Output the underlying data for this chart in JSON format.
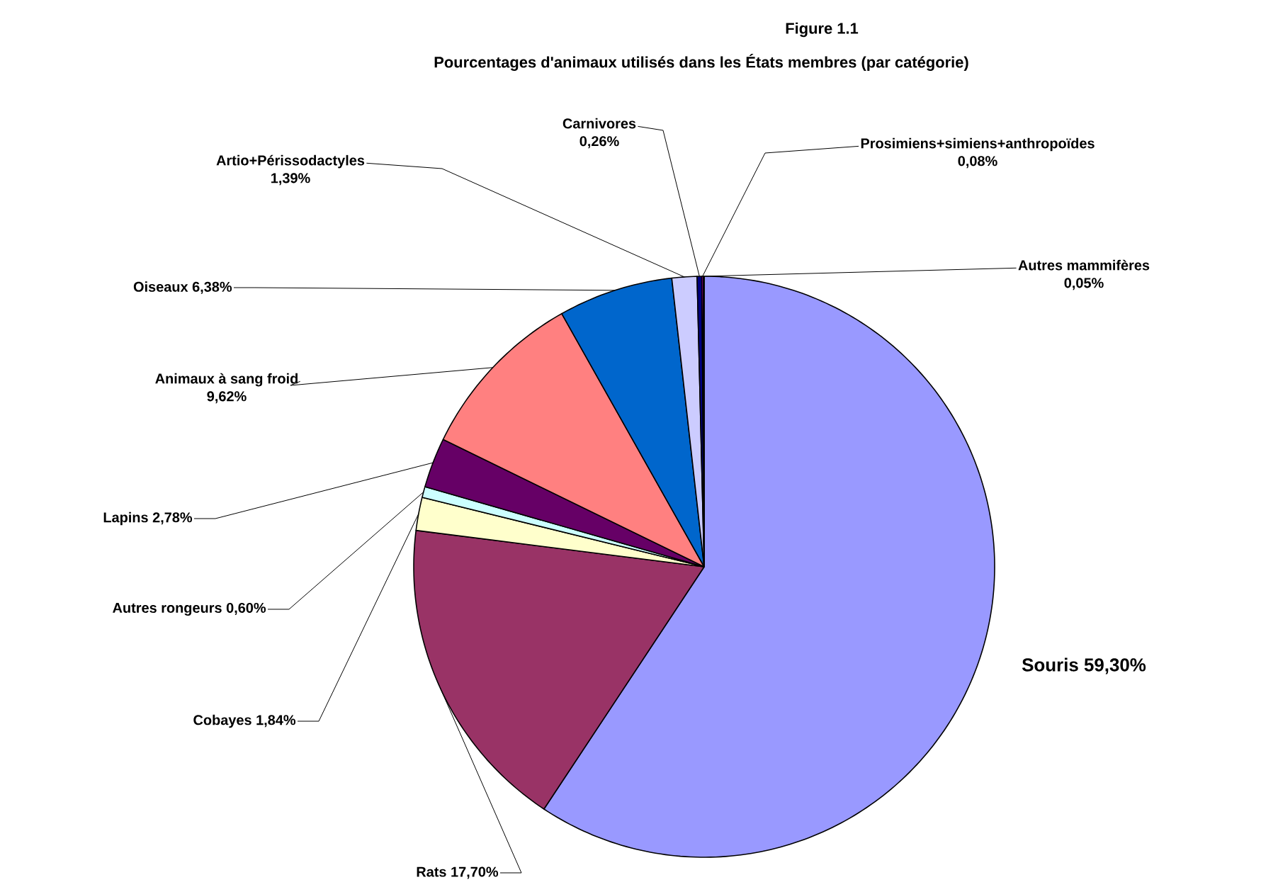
{
  "chart_data": {
    "type": "pie",
    "title": "Figure 1.1",
    "subtitle": "Pourcentages d'animaux utilisés dans les États membres (par catégorie)",
    "categories": [
      "Souris",
      "Rats",
      "Cobayes",
      "Autres rongeurs",
      "Lapins",
      "Animaux à sang froid",
      "Oiseaux",
      "Artio+Périssodactyles",
      "Carnivores",
      "Prosimiens+simiens+anthropoïdes",
      "Autres mammifères"
    ],
    "values": [
      59.3,
      17.7,
      1.84,
      0.6,
      2.78,
      9.62,
      6.38,
      1.39,
      0.26,
      0.08,
      0.05
    ],
    "value_labels": [
      "59,30%",
      "17,70%",
      "1,84%",
      "0,60%",
      "2,78%",
      "9,62%",
      "6,38%",
      "1,39%",
      "0,26%",
      "0,08%",
      "0,05%"
    ],
    "colors": [
      "#9999ff",
      "#993366",
      "#ffffcc",
      "#ccffff",
      "#660066",
      "#ff8080",
      "#0066cc",
      "#ccccff",
      "#000080",
      "#ff00ff",
      "#ffff00"
    ]
  }
}
